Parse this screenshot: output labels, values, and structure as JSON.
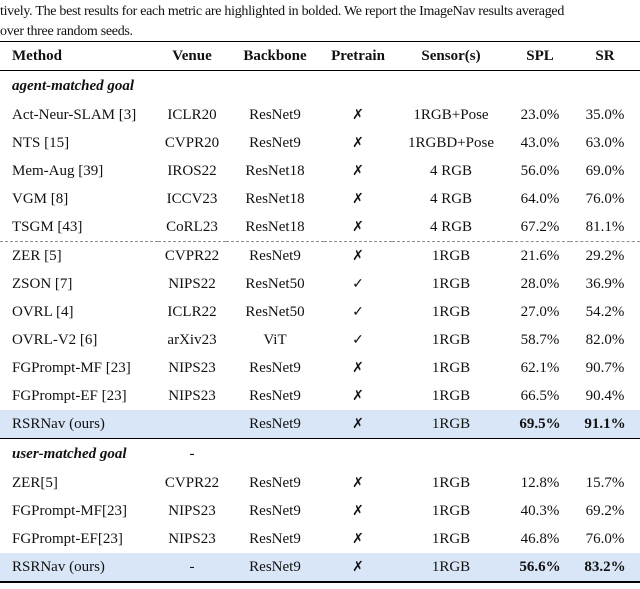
{
  "caption": {
    "line1": "tively. The best results for each metric are highlighted in bolded. We report the ImageNav results averaged",
    "line2": "over three random seeds."
  },
  "colors": {
    "highlight_row": "#d9e6f7",
    "rule": "#000000",
    "dashed_rule": "#8f8f8f",
    "text": "#111111"
  },
  "table": {
    "columns": [
      "Method",
      "Venue",
      "Backbone",
      "Pretrain",
      "Sensor(s)",
      "SPL",
      "SR"
    ],
    "icons": {
      "cross": "✗",
      "check": "✓"
    },
    "sections": [
      {
        "title": "agent-matched goal",
        "venue_note": "",
        "rows": [
          {
            "method": "Act-Neur-SLAM [3]",
            "venue": "ICLR20",
            "backbone": "ResNet9",
            "pretrain": "cross",
            "sensors": "1RGB+Pose",
            "spl": "23.0%",
            "sr": "35.0%"
          },
          {
            "method": "NTS [15]",
            "venue": "CVPR20",
            "backbone": "ResNet9",
            "pretrain": "cross",
            "sensors": "1RGBD+Pose",
            "spl": "43.0%",
            "sr": "63.0%"
          },
          {
            "method": "Mem-Aug [39]",
            "venue": "IROS22",
            "backbone": "ResNet18",
            "pretrain": "cross",
            "sensors": "4 RGB",
            "spl": "56.0%",
            "sr": "69.0%"
          },
          {
            "method": "VGM [8]",
            "venue": "ICCV23",
            "backbone": "ResNet18",
            "pretrain": "cross",
            "sensors": "4 RGB",
            "spl": "64.0%",
            "sr": "76.0%"
          },
          {
            "method": "TSGM [43]",
            "venue": "CoRL23",
            "backbone": "ResNet18",
            "pretrain": "cross",
            "sensors": "4 RGB",
            "spl": "67.2%",
            "sr": "81.1%"
          },
          {
            "method": "ZER [5]",
            "venue": "CVPR22",
            "backbone": "ResNet9",
            "pretrain": "cross",
            "sensors": "1RGB",
            "spl": "21.6%",
            "sr": "29.2%",
            "dashed_above": true
          },
          {
            "method": "ZSON [7]",
            "venue": "NIPS22",
            "backbone": "ResNet50",
            "pretrain": "check",
            "sensors": "1RGB",
            "spl": "28.0%",
            "sr": "36.9%"
          },
          {
            "method": "OVRL [4]",
            "venue": "ICLR22",
            "backbone": "ResNet50",
            "pretrain": "check",
            "sensors": "1RGB",
            "spl": "27.0%",
            "sr": "54.2%"
          },
          {
            "method": "OVRL-V2 [6]",
            "venue": "arXiv23",
            "backbone": "ViT",
            "pretrain": "check",
            "sensors": "1RGB",
            "spl": "58.7%",
            "sr": "82.0%"
          },
          {
            "method": "FGPrompt-MF [23]",
            "venue": "NIPS23",
            "backbone": "ResNet9",
            "pretrain": "cross",
            "sensors": "1RGB",
            "spl": "62.1%",
            "sr": "90.7%"
          },
          {
            "method": "FGPrompt-EF [23]",
            "venue": "NIPS23",
            "backbone": "ResNet9",
            "pretrain": "cross",
            "sensors": "1RGB",
            "spl": "66.5%",
            "sr": "90.4%"
          },
          {
            "method": "RSRNav (ours)",
            "venue": "",
            "backbone": "ResNet9",
            "pretrain": "cross",
            "sensors": "1RGB",
            "spl": "69.5%",
            "sr": "91.1%",
            "highlight": true,
            "bold_metrics": true,
            "rule_below": true
          }
        ]
      },
      {
        "title": "user-matched goal",
        "venue_note": "-",
        "rows": [
          {
            "method": "ZER[5]",
            "venue": "CVPR22",
            "backbone": "ResNet9",
            "pretrain": "cross",
            "sensors": "1RGB",
            "spl": "12.8%",
            "sr": "15.7%"
          },
          {
            "method": "FGPrompt-MF[23]",
            "venue": "NIPS23",
            "backbone": "ResNet9",
            "pretrain": "cross",
            "sensors": "1RGB",
            "spl": "40.3%",
            "sr": "69.2%"
          },
          {
            "method": "FGPrompt-EF[23]",
            "venue": "NIPS23",
            "backbone": "ResNet9",
            "pretrain": "cross",
            "sensors": "1RGB",
            "spl": "46.8%",
            "sr": "76.0%"
          },
          {
            "method": "RSRNav (ours)",
            "venue": "-",
            "backbone": "ResNet9",
            "pretrain": "cross",
            "sensors": "1RGB",
            "spl": "56.6%",
            "sr": "83.2%",
            "highlight": true,
            "bold_metrics": true
          }
        ]
      }
    ]
  }
}
